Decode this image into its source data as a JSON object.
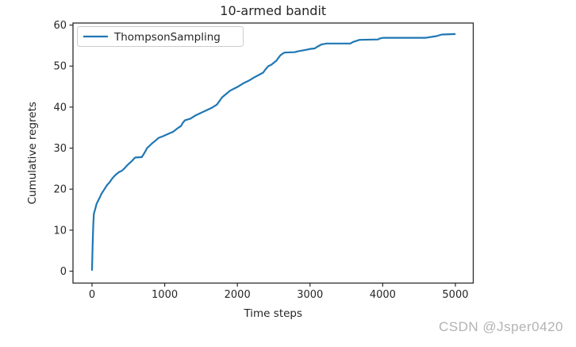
{
  "watermark": {
    "text": "CSDN @Jsper0420",
    "color": "#b3b3b3"
  },
  "chart_data": {
    "type": "line",
    "title": "10-armed bandit",
    "xlabel": "Time steps",
    "ylabel": "Cumulative regrets",
    "xlim": [
      -262,
      5246
    ],
    "ylim": [
      -2.9,
      60.5
    ],
    "x_ticks": [
      0,
      1000,
      2000,
      3000,
      4000,
      5000
    ],
    "y_ticks": [
      0,
      10,
      20,
      30,
      40,
      50,
      60
    ],
    "grid": false,
    "legend": {
      "position": "upper-left",
      "entries": [
        "ThompsonSampling"
      ]
    },
    "axis_color": "#2b2b2b",
    "series": [
      {
        "name": "ThompsonSampling",
        "color": "#1f77b4",
        "points": [
          [
            0,
            0.3
          ],
          [
            8,
            6.0
          ],
          [
            18,
            11.5
          ],
          [
            25,
            14.0
          ],
          [
            45,
            15.2
          ],
          [
            62,
            16.4
          ],
          [
            98,
            17.7
          ],
          [
            134,
            19.0
          ],
          [
            171,
            20.0
          ],
          [
            207,
            21.0
          ],
          [
            243,
            21.7
          ],
          [
            270,
            22.4
          ],
          [
            302,
            23.1
          ],
          [
            338,
            23.7
          ],
          [
            374,
            24.2
          ],
          [
            412,
            24.5
          ],
          [
            448,
            25.1
          ],
          [
            484,
            25.8
          ],
          [
            521,
            26.4
          ],
          [
            557,
            27.0
          ],
          [
            575,
            27.4
          ],
          [
            593,
            27.7
          ],
          [
            685,
            27.8
          ],
          [
            710,
            28.5
          ],
          [
            739,
            29.4
          ],
          [
            757,
            30.0
          ],
          [
            793,
            30.6
          ],
          [
            822,
            31.1
          ],
          [
            870,
            31.8
          ],
          [
            917,
            32.5
          ],
          [
            975,
            32.9
          ],
          [
            1026,
            33.3
          ],
          [
            1117,
            34.0
          ],
          [
            1160,
            34.6
          ],
          [
            1190,
            35.0
          ],
          [
            1225,
            35.4
          ],
          [
            1250,
            36.2
          ],
          [
            1281,
            36.8
          ],
          [
            1354,
            37.2
          ],
          [
            1427,
            38.0
          ],
          [
            1499,
            38.6
          ],
          [
            1572,
            39.2
          ],
          [
            1645,
            39.8
          ],
          [
            1717,
            40.6
          ],
          [
            1755,
            41.5
          ],
          [
            1790,
            42.4
          ],
          [
            1845,
            43.2
          ],
          [
            1900,
            44.0
          ],
          [
            1954,
            44.5
          ],
          [
            2009,
            45.0
          ],
          [
            2082,
            45.8
          ],
          [
            2154,
            46.4
          ],
          [
            2227,
            47.2
          ],
          [
            2300,
            47.9
          ],
          [
            2354,
            48.4
          ],
          [
            2391,
            49.3
          ],
          [
            2427,
            50.0
          ],
          [
            2464,
            50.3
          ],
          [
            2500,
            50.8
          ],
          [
            2536,
            51.3
          ],
          [
            2560,
            51.9
          ],
          [
            2591,
            52.6
          ],
          [
            2620,
            53.0
          ],
          [
            2650,
            53.3
          ],
          [
            2790,
            53.4
          ],
          [
            2809,
            53.5
          ],
          [
            2864,
            53.7
          ],
          [
            2955,
            54.0
          ],
          [
            3010,
            54.2
          ],
          [
            3064,
            54.3
          ],
          [
            3107,
            54.8
          ],
          [
            3161,
            55.3
          ],
          [
            3228,
            55.5
          ],
          [
            3555,
            55.5
          ],
          [
            3592,
            55.9
          ],
          [
            3665,
            56.3
          ],
          [
            3682,
            56.4
          ],
          [
            3937,
            56.5
          ],
          [
            3955,
            56.7
          ],
          [
            4010,
            56.9
          ],
          [
            4595,
            56.9
          ],
          [
            4702,
            57.2
          ],
          [
            4740,
            57.3
          ],
          [
            4811,
            57.7
          ],
          [
            4993,
            57.8
          ]
        ]
      }
    ]
  }
}
